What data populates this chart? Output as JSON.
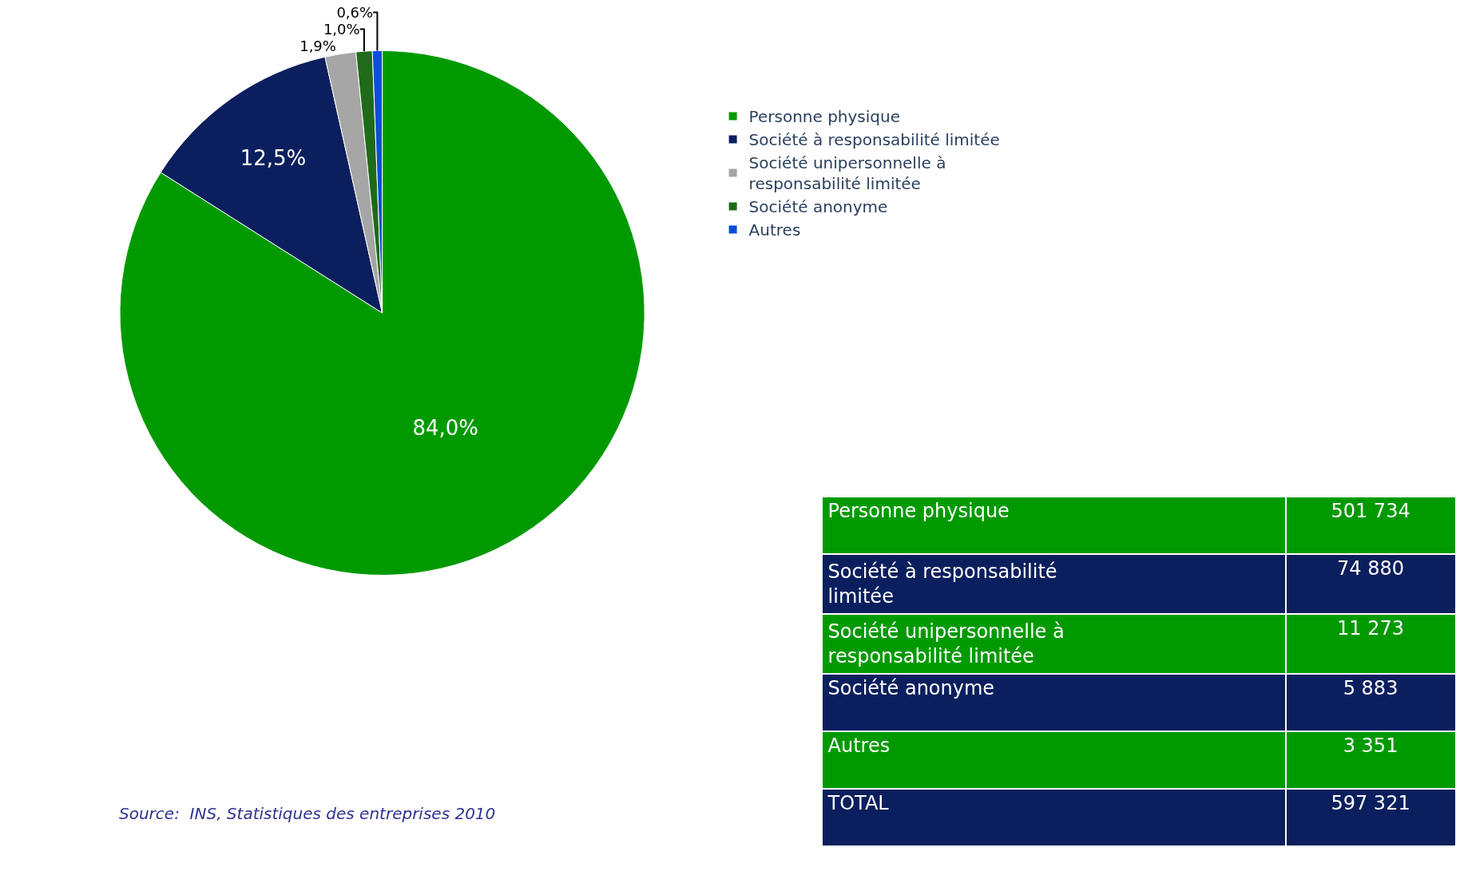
{
  "chart_data": [
    {
      "type": "pie",
      "categories": [
        "Personne physique",
        "Société à responsabilité limitée",
        "Société unipersonnelle à responsabilité limitée",
        "Société anonyme",
        "Autres"
      ],
      "values": [
        84.0,
        12.5,
        1.9,
        1.0,
        0.6
      ],
      "value_labels": [
        "84,0%",
        "12,5%",
        "1,9%",
        "1,0%",
        "0,6%"
      ],
      "colors": [
        "#009a00",
        "#0b1f5e",
        "#a6a6a6",
        "#1f6b1a",
        "#0a4fd6"
      ],
      "legend": "right",
      "annotations": [
        "Source:  INS, Statistiques des entreprises 2010"
      ]
    },
    {
      "type": "other",
      "categories": [
        "Personne physique",
        "Société à responsabilité limitée",
        "Société unipersonnelle à responsabilité limitée",
        "Société anonyme",
        "Autres",
        "TOTAL"
      ],
      "values": [
        501734,
        74880,
        11273,
        5883,
        3351,
        597321
      ],
      "colors": [
        "#009a00",
        "#0b1f5e",
        "#009a00",
        "#0b1f5e",
        "#009a00",
        "#0b1f5e"
      ],
      "data_labels": true
    }
  ]
}
